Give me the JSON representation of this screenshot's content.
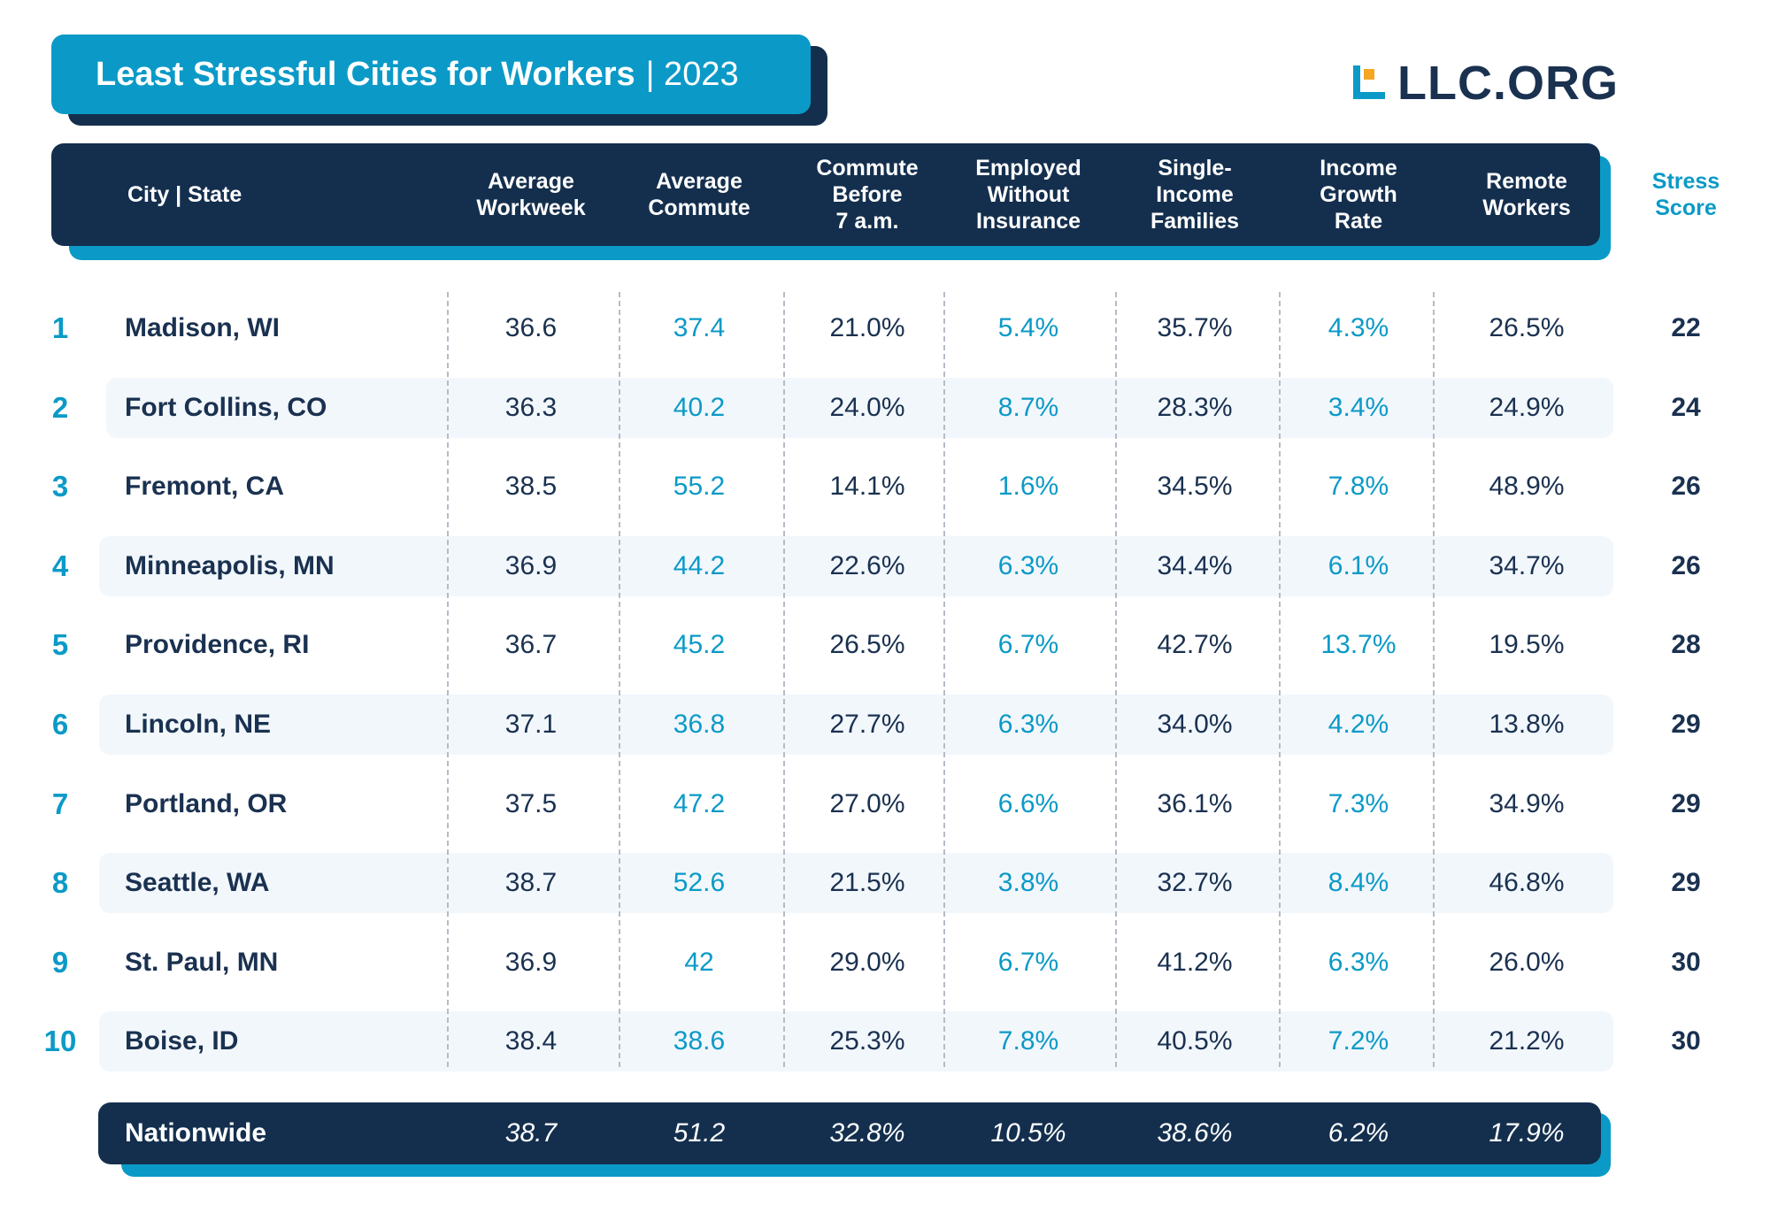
{
  "title": {
    "main": "Least Stressful Cities for Workers",
    "year": "| 2023"
  },
  "logo": {
    "text": "LLC.ORG",
    "colors": {
      "blue": "#0b9ac7",
      "orange": "#f5a623"
    }
  },
  "colors": {
    "navy": "#142f4e",
    "accent": "#0b9ac7",
    "band": "#f2f7fc"
  },
  "chart_data": {
    "type": "table",
    "title": "Least Stressful Cities for Workers | 2023",
    "columns": [
      "City | State",
      "Average\nWorkweek",
      "Average\nCommute",
      "Commute\nBefore\n7 a.m.",
      "Employed\nWithout\nInsurance",
      "Single-\nIncome\nFamilies",
      "Income\nGrowth\nRate",
      "Remote\nWorkers",
      "Stress\nScore"
    ],
    "rows": [
      {
        "rank": "1",
        "city": "Madison, WI",
        "workweek": "36.6",
        "commute": "37.4",
        "before7": "21.0%",
        "uninsured": "5.4%",
        "single": "35.7%",
        "growth": "4.3%",
        "remote": "26.5%",
        "score": "22"
      },
      {
        "rank": "2",
        "city": "Fort Collins, CO",
        "workweek": "36.3",
        "commute": "40.2",
        "before7": "24.0%",
        "uninsured": "8.7%",
        "single": "28.3%",
        "growth": "3.4%",
        "remote": "24.9%",
        "score": "24"
      },
      {
        "rank": "3",
        "city": "Fremont, CA",
        "workweek": "38.5",
        "commute": "55.2",
        "before7": "14.1%",
        "uninsured": "1.6%",
        "single": "34.5%",
        "growth": "7.8%",
        "remote": "48.9%",
        "score": "26"
      },
      {
        "rank": "4",
        "city": "Minneapolis, MN",
        "workweek": "36.9",
        "commute": "44.2",
        "before7": "22.6%",
        "uninsured": "6.3%",
        "single": "34.4%",
        "growth": "6.1%",
        "remote": "34.7%",
        "score": "26"
      },
      {
        "rank": "5",
        "city": "Providence, RI",
        "workweek": "36.7",
        "commute": "45.2",
        "before7": "26.5%",
        "uninsured": "6.7%",
        "single": "42.7%",
        "growth": "13.7%",
        "remote": "19.5%",
        "score": "28"
      },
      {
        "rank": "6",
        "city": "Lincoln, NE",
        "workweek": "37.1",
        "commute": "36.8",
        "before7": "27.7%",
        "uninsured": "6.3%",
        "single": "34.0%",
        "growth": "4.2%",
        "remote": "13.8%",
        "score": "29"
      },
      {
        "rank": "7",
        "city": "Portland, OR",
        "workweek": "37.5",
        "commute": "47.2",
        "before7": "27.0%",
        "uninsured": "6.6%",
        "single": "36.1%",
        "growth": "7.3%",
        "remote": "34.9%",
        "score": "29"
      },
      {
        "rank": "8",
        "city": "Seattle, WA",
        "workweek": "38.7",
        "commute": "52.6",
        "before7": "21.5%",
        "uninsured": "3.8%",
        "single": "32.7%",
        "growth": "8.4%",
        "remote": "46.8%",
        "score": "29"
      },
      {
        "rank": "9",
        "city": "St. Paul, MN",
        "workweek": "36.9",
        "commute": "42",
        "before7": "29.0%",
        "uninsured": "6.7%",
        "single": "41.2%",
        "growth": "6.3%",
        "remote": "26.0%",
        "score": "30"
      },
      {
        "rank": "10",
        "city": "Boise, ID",
        "workweek": "38.4",
        "commute": "38.6",
        "before7": "25.3%",
        "uninsured": "7.8%",
        "single": "40.5%",
        "growth": "7.2%",
        "remote": "21.2%",
        "score": "30"
      }
    ],
    "nationwide": {
      "label": "Nationwide",
      "workweek": "38.7",
      "commute": "51.2",
      "before7": "32.8%",
      "uninsured": "10.5%",
      "single": "38.6%",
      "growth": "6.2%",
      "remote": "17.9%"
    }
  }
}
